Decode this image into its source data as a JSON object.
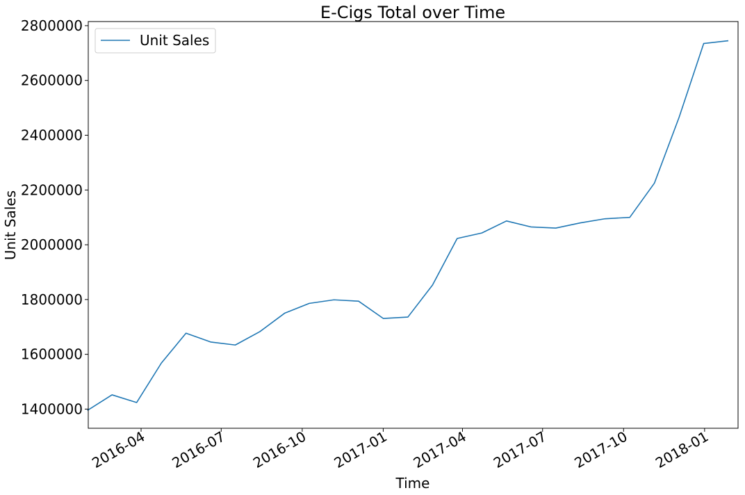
{
  "chart_data": {
    "type": "line",
    "title": "E-Cigs Total over Time",
    "xlabel": "Time",
    "ylabel": "Unit Sales",
    "x_axis_type": "date",
    "xlim": [
      "2016-02-01",
      "2018-02-08"
    ],
    "ylim": [
      1330000,
      2815000
    ],
    "yticks": [
      1400000,
      1600000,
      1800000,
      2000000,
      2200000,
      2400000,
      2600000,
      2800000
    ],
    "xticks": [
      "2016-04",
      "2016-07",
      "2016-10",
      "2017-01",
      "2017-04",
      "2017-07",
      "2017-10",
      "2018-01"
    ],
    "grid": false,
    "legend": {
      "position": "top-left",
      "entries": [
        "Unit Sales"
      ]
    },
    "color": "#1f77b4",
    "series": [
      {
        "name": "Unit Sales",
        "x": [
          "2016-01-31",
          "2016-02-28",
          "2016-03-27",
          "2016-04-24",
          "2016-05-22",
          "2016-06-19",
          "2016-07-17",
          "2016-08-14",
          "2016-09-11",
          "2016-10-09",
          "2016-11-06",
          "2016-12-04",
          "2017-01-01",
          "2017-01-29",
          "2017-02-26",
          "2017-03-26",
          "2017-04-23",
          "2017-05-21",
          "2017-06-18",
          "2017-07-16",
          "2017-08-13",
          "2017-09-10",
          "2017-10-08",
          "2017-11-05",
          "2017-12-03",
          "2017-12-31",
          "2018-01-28"
        ],
        "values": [
          1395000,
          1452000,
          1424000,
          1568000,
          1677000,
          1645000,
          1634000,
          1683000,
          1750000,
          1786000,
          1799000,
          1794000,
          1731000,
          1736000,
          1853000,
          2023000,
          2043000,
          2087000,
          2065000,
          2061000,
          2080000,
          2095000,
          2100000,
          2225000,
          2465000,
          2735000,
          2745000
        ]
      }
    ]
  }
}
